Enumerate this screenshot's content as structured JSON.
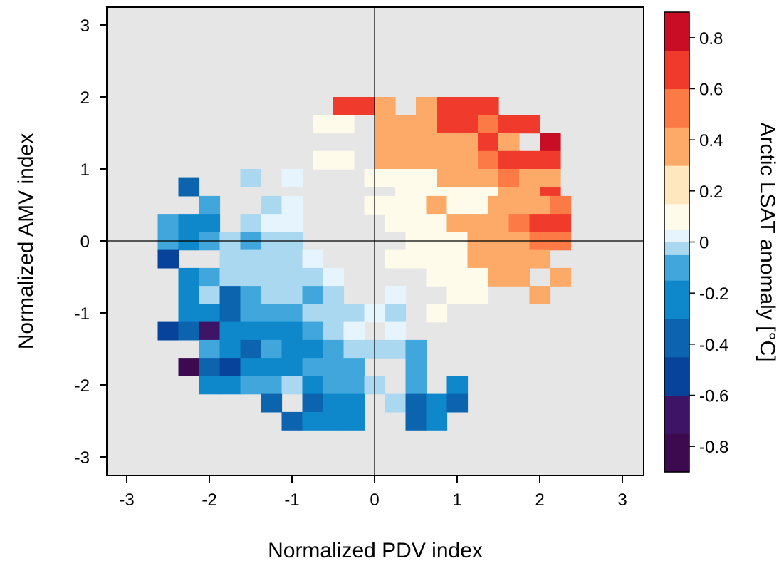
{
  "chart_data": {
    "type": "heatmap",
    "title": "",
    "xlabel": "Normalized PDV index",
    "ylabel": "Normalized AMV index",
    "colorbar_label": "Arctic LSAT anomaly [°C]",
    "xlim": [
      -3.0,
      3.0
    ],
    "ylim": [
      -3.0,
      3.0
    ],
    "x_ticks": [
      -3,
      -2,
      -1,
      0,
      1,
      2,
      3
    ],
    "y_ticks": [
      -3,
      -2,
      -1,
      0,
      1,
      2,
      3
    ],
    "x_tick_labels": [
      "-3",
      "-2",
      "-1",
      "0",
      "1",
      "2",
      "3"
    ],
    "y_tick_labels": [
      "-3",
      "-2",
      "-1",
      "0",
      "1",
      "2",
      "3"
    ],
    "reference_lines": {
      "x": 0,
      "y": 0
    },
    "cell_size": 0.25,
    "background_color": "#e6e6e6",
    "colorbar": {
      "range": [
        -0.9,
        0.9
      ],
      "bins": [
        {
          "min": -0.9,
          "max": -0.75,
          "color": "#3d0a4f"
        },
        {
          "min": -0.75,
          "max": -0.6,
          "color": "#3e1466"
        },
        {
          "min": -0.6,
          "max": -0.45,
          "color": "#08439b"
        },
        {
          "min": -0.45,
          "max": -0.3,
          "color": "#0c64af"
        },
        {
          "min": -0.3,
          "max": -0.15,
          "color": "#0e88cb"
        },
        {
          "min": -0.15,
          "max": -0.05,
          "color": "#40a6db"
        },
        {
          "min": -0.05,
          "max": 0.0,
          "color": "#aad8f0"
        },
        {
          "min": 0.0,
          "max": 0.05,
          "color": "#e6f5fd"
        },
        {
          "min": 0.05,
          "max": 0.15,
          "color": "#fffbea"
        },
        {
          "min": 0.15,
          "max": 0.3,
          "color": "#ffe7bd"
        },
        {
          "min": 0.3,
          "max": 0.45,
          "color": "#fda968"
        },
        {
          "min": 0.45,
          "max": 0.6,
          "color": "#fc7a45"
        },
        {
          "min": 0.6,
          "max": 0.75,
          "color": "#f03a2c"
        },
        {
          "min": 0.75,
          "max": 0.9,
          "color": "#c80d25"
        }
      ],
      "ticks": [
        0.8,
        0.6,
        0.4,
        0.2,
        0,
        -0.2,
        -0.4,
        -0.6,
        -0.8
      ],
      "tick_labels": [
        "0.8",
        "0.6",
        "0.4",
        "0.2",
        "0",
        "-0.2",
        "-0.4",
        "-0.6",
        "-0.8"
      ]
    },
    "cells": [
      {
        "x": -0.375,
        "y": 1.875,
        "v": 0.62
      },
      {
        "x": -0.125,
        "y": 1.875,
        "v": 0.62
      },
      {
        "x": 0.125,
        "y": 1.875,
        "v": 0.42
      },
      {
        "x": 0.625,
        "y": 1.875,
        "v": 0.32
      },
      {
        "x": 0.875,
        "y": 1.875,
        "v": 0.62
      },
      {
        "x": 1.125,
        "y": 1.875,
        "v": 0.62
      },
      {
        "x": 1.375,
        "y": 1.875,
        "v": 0.62
      },
      {
        "x": -0.625,
        "y": 1.625,
        "v": 0.12
      },
      {
        "x": -0.375,
        "y": 1.625,
        "v": 0.12
      },
      {
        "x": 0.125,
        "y": 1.625,
        "v": 0.32
      },
      {
        "x": 0.375,
        "y": 1.625,
        "v": 0.42
      },
      {
        "x": 0.625,
        "y": 1.625,
        "v": 0.42
      },
      {
        "x": 0.875,
        "y": 1.625,
        "v": 0.62
      },
      {
        "x": 1.125,
        "y": 1.625,
        "v": 0.62
      },
      {
        "x": 1.375,
        "y": 1.625,
        "v": 0.52
      },
      {
        "x": 1.625,
        "y": 1.625,
        "v": 0.62
      },
      {
        "x": 1.875,
        "y": 1.625,
        "v": 0.62
      },
      {
        "x": 0.125,
        "y": 1.375,
        "v": 0.32
      },
      {
        "x": 0.375,
        "y": 1.375,
        "v": 0.42
      },
      {
        "x": 0.625,
        "y": 1.375,
        "v": 0.32
      },
      {
        "x": 0.875,
        "y": 1.375,
        "v": 0.32
      },
      {
        "x": 1.125,
        "y": 1.375,
        "v": 0.32
      },
      {
        "x": 1.375,
        "y": 1.375,
        "v": 0.62
      },
      {
        "x": 1.625,
        "y": 1.375,
        "v": 0.32
      },
      {
        "x": 2.125,
        "y": 1.375,
        "v": 0.82
      },
      {
        "x": -0.625,
        "y": 1.125,
        "v": 0.12
      },
      {
        "x": -0.375,
        "y": 1.125,
        "v": 0.12
      },
      {
        "x": 0.125,
        "y": 1.125,
        "v": 0.32
      },
      {
        "x": 0.375,
        "y": 1.125,
        "v": 0.32
      },
      {
        "x": 0.625,
        "y": 1.125,
        "v": 0.32
      },
      {
        "x": 0.875,
        "y": 1.125,
        "v": 0.32
      },
      {
        "x": 1.125,
        "y": 1.125,
        "v": 0.32
      },
      {
        "x": 1.375,
        "y": 1.125,
        "v": 0.52
      },
      {
        "x": 1.625,
        "y": 1.125,
        "v": 0.62
      },
      {
        "x": 1.875,
        "y": 1.125,
        "v": 0.62
      },
      {
        "x": 2.125,
        "y": 1.125,
        "v": 0.62
      },
      {
        "x": -1.5,
        "y": 0.875,
        "v": -0.02
      },
      {
        "x": -1.0,
        "y": 0.875,
        "v": 0.02
      },
      {
        "x": 0.0,
        "y": 0.875,
        "v": 0.08
      },
      {
        "x": 0.25,
        "y": 0.875,
        "v": 0.12
      },
      {
        "x": 0.375,
        "y": 0.875,
        "v": 0.12
      },
      {
        "x": 0.625,
        "y": 0.875,
        "v": 0.12
      },
      {
        "x": 0.875,
        "y": 0.875,
        "v": 0.42
      },
      {
        "x": 1.125,
        "y": 0.875,
        "v": 0.42
      },
      {
        "x": 1.375,
        "y": 0.875,
        "v": 0.42
      },
      {
        "x": 1.625,
        "y": 0.875,
        "v": 0.52
      },
      {
        "x": 1.875,
        "y": 0.875,
        "v": 0.42
      },
      {
        "x": 2.125,
        "y": 0.875,
        "v": 0.42
      },
      {
        "x": -2.25,
        "y": 0.75,
        "v": -0.38
      },
      {
        "x": 0.375,
        "y": 0.625,
        "v": 0.12
      },
      {
        "x": 0.625,
        "y": 0.625,
        "v": 0.12
      },
      {
        "x": 0.875,
        "y": 0.625,
        "v": 0.12
      },
      {
        "x": 1.125,
        "y": 0.625,
        "v": 0.12
      },
      {
        "x": 1.375,
        "y": 0.625,
        "v": 0.12
      },
      {
        "x": 1.625,
        "y": 0.625,
        "v": 0.42
      },
      {
        "x": 1.875,
        "y": 0.625,
        "v": 0.42
      },
      {
        "x": 2.125,
        "y": 0.625,
        "v": 0.62
      },
      {
        "x": -2.0,
        "y": 0.5,
        "v": -0.12
      },
      {
        "x": -1.25,
        "y": 0.5,
        "v": -0.02
      },
      {
        "x": -1.0,
        "y": 0.5,
        "v": 0.02
      },
      {
        "x": 0.0,
        "y": 0.5,
        "v": 0.12
      },
      {
        "x": 0.25,
        "y": 0.5,
        "v": 0.12
      },
      {
        "x": 0.5,
        "y": 0.5,
        "v": 0.12
      },
      {
        "x": 0.75,
        "y": 0.5,
        "v": 0.32
      },
      {
        "x": 1.0,
        "y": 0.5,
        "v": 0.12
      },
      {
        "x": 1.25,
        "y": 0.5,
        "v": 0.12
      },
      {
        "x": 1.5,
        "y": 0.5,
        "v": 0.42
      },
      {
        "x": 1.75,
        "y": 0.5,
        "v": 0.42
      },
      {
        "x": 2.0,
        "y": 0.5,
        "v": 0.42
      },
      {
        "x": 2.25,
        "y": 0.5,
        "v": 0.52
      },
      {
        "x": -2.5,
        "y": 0.25,
        "v": -0.12
      },
      {
        "x": -2.25,
        "y": 0.25,
        "v": -0.22
      },
      {
        "x": -2.0,
        "y": 0.25,
        "v": -0.22
      },
      {
        "x": -1.5,
        "y": 0.25,
        "v": -0.02
      },
      {
        "x": -1.25,
        "y": 0.25,
        "v": 0.02
      },
      {
        "x": -1.0,
        "y": 0.25,
        "v": 0.02
      },
      {
        "x": 0.25,
        "y": 0.25,
        "v": 0.08
      },
      {
        "x": 0.5,
        "y": 0.25,
        "v": 0.12
      },
      {
        "x": 0.75,
        "y": 0.25,
        "v": 0.12
      },
      {
        "x": 1.0,
        "y": 0.25,
        "v": 0.32
      },
      {
        "x": 1.25,
        "y": 0.25,
        "v": 0.32
      },
      {
        "x": 1.5,
        "y": 0.25,
        "v": 0.32
      },
      {
        "x": 1.75,
        "y": 0.25,
        "v": 0.52
      },
      {
        "x": 2.0,
        "y": 0.25,
        "v": 0.62
      },
      {
        "x": 2.25,
        "y": 0.25,
        "v": 0.62
      },
      {
        "x": -2.5,
        "y": 0.0,
        "v": -0.12
      },
      {
        "x": -2.25,
        "y": 0.0,
        "v": -0.22
      },
      {
        "x": -2.0,
        "y": 0.0,
        "v": -0.12
      },
      {
        "x": -1.75,
        "y": 0.0,
        "v": -0.02
      },
      {
        "x": -1.5,
        "y": 0.0,
        "v": -0.12
      },
      {
        "x": -1.25,
        "y": 0.0,
        "v": -0.02
      },
      {
        "x": -1.0,
        "y": 0.0,
        "v": -0.02
      },
      {
        "x": 0.5,
        "y": 0.0,
        "v": 0.12
      },
      {
        "x": 0.75,
        "y": 0.0,
        "v": 0.12
      },
      {
        "x": 1.0,
        "y": 0.0,
        "v": 0.12
      },
      {
        "x": 1.25,
        "y": 0.0,
        "v": 0.32
      },
      {
        "x": 1.5,
        "y": 0.0,
        "v": 0.42
      },
      {
        "x": 1.75,
        "y": 0.0,
        "v": 0.42
      },
      {
        "x": 2.0,
        "y": 0.0,
        "v": 0.52
      },
      {
        "x": 2.25,
        "y": 0.0,
        "v": 0.52
      },
      {
        "x": -2.5,
        "y": -0.25,
        "v": -0.48
      },
      {
        "x": -1.75,
        "y": -0.25,
        "v": -0.02
      },
      {
        "x": -1.5,
        "y": -0.25,
        "v": -0.02
      },
      {
        "x": -1.25,
        "y": -0.25,
        "v": -0.02
      },
      {
        "x": -1.0,
        "y": -0.25,
        "v": -0.02
      },
      {
        "x": -0.75,
        "y": -0.25,
        "v": 0.02
      },
      {
        "x": 0.25,
        "y": -0.25,
        "v": 0.08
      },
      {
        "x": 0.5,
        "y": -0.25,
        "v": 0.12
      },
      {
        "x": 0.75,
        "y": -0.25,
        "v": 0.12
      },
      {
        "x": 1.0,
        "y": -0.25,
        "v": 0.12
      },
      {
        "x": 1.25,
        "y": -0.25,
        "v": 0.32
      },
      {
        "x": 1.5,
        "y": -0.25,
        "v": 0.42
      },
      {
        "x": 1.75,
        "y": -0.25,
        "v": 0.42
      },
      {
        "x": 2.0,
        "y": -0.25,
        "v": 0.42
      },
      {
        "x": -2.25,
        "y": -0.5,
        "v": -0.22
      },
      {
        "x": -2.0,
        "y": -0.5,
        "v": -0.12
      },
      {
        "x": -1.75,
        "y": -0.5,
        "v": -0.02
      },
      {
        "x": -1.5,
        "y": -0.5,
        "v": -0.02
      },
      {
        "x": -1.25,
        "y": -0.5,
        "v": -0.02
      },
      {
        "x": -1.0,
        "y": -0.5,
        "v": -0.02
      },
      {
        "x": -0.75,
        "y": -0.5,
        "v": -0.02
      },
      {
        "x": -0.5,
        "y": -0.5,
        "v": 0.02
      },
      {
        "x": 0.75,
        "y": -0.5,
        "v": 0.12
      },
      {
        "x": 1.0,
        "y": -0.5,
        "v": 0.12
      },
      {
        "x": 1.25,
        "y": -0.5,
        "v": 0.12
      },
      {
        "x": 1.5,
        "y": -0.5,
        "v": 0.42
      },
      {
        "x": 1.75,
        "y": -0.5,
        "v": 0.42
      },
      {
        "x": 2.25,
        "y": -0.5,
        "v": 0.42
      },
      {
        "x": -2.25,
        "y": -0.75,
        "v": -0.22
      },
      {
        "x": -2.0,
        "y": -0.75,
        "v": -0.02
      },
      {
        "x": -1.75,
        "y": -0.75,
        "v": -0.38
      },
      {
        "x": -1.5,
        "y": -0.75,
        "v": -0.12
      },
      {
        "x": -1.25,
        "y": -0.75,
        "v": -0.02
      },
      {
        "x": -1.0,
        "y": -0.75,
        "v": -0.02
      },
      {
        "x": -0.75,
        "y": -0.75,
        "v": -0.12
      },
      {
        "x": -0.5,
        "y": -0.75,
        "v": -0.02
      },
      {
        "x": 0.25,
        "y": -0.75,
        "v": 0.02
      },
      {
        "x": 1.0,
        "y": -0.75,
        "v": 0.08
      },
      {
        "x": 1.25,
        "y": -0.75,
        "v": 0.12
      },
      {
        "x": 2.0,
        "y": -0.75,
        "v": 0.42
      },
      {
        "x": -2.25,
        "y": -1.0,
        "v": -0.22
      },
      {
        "x": -2.0,
        "y": -1.0,
        "v": -0.22
      },
      {
        "x": -1.75,
        "y": -1.0,
        "v": -0.38
      },
      {
        "x": -1.5,
        "y": -1.0,
        "v": -0.12
      },
      {
        "x": -1.25,
        "y": -1.0,
        "v": -0.12
      },
      {
        "x": -1.0,
        "y": -1.0,
        "v": -0.12
      },
      {
        "x": -0.75,
        "y": -1.0,
        "v": -0.02
      },
      {
        "x": -0.5,
        "y": -1.0,
        "v": -0.02
      },
      {
        "x": -0.25,
        "y": -1.0,
        "v": -0.02
      },
      {
        "x": 0.0,
        "y": -1.0,
        "v": 0.02
      },
      {
        "x": 0.25,
        "y": -1.0,
        "v": -0.02
      },
      {
        "x": 0.75,
        "y": -1.0,
        "v": 0.12
      },
      {
        "x": -2.5,
        "y": -1.25,
        "v": -0.48
      },
      {
        "x": -2.25,
        "y": -1.25,
        "v": -0.38
      },
      {
        "x": -2.0,
        "y": -1.25,
        "v": -0.68
      },
      {
        "x": -1.75,
        "y": -1.25,
        "v": -0.22
      },
      {
        "x": -1.5,
        "y": -1.25,
        "v": -0.22
      },
      {
        "x": -1.25,
        "y": -1.25,
        "v": -0.22
      },
      {
        "x": -1.0,
        "y": -1.25,
        "v": -0.22
      },
      {
        "x": -0.75,
        "y": -1.25,
        "v": -0.12
      },
      {
        "x": -0.5,
        "y": -1.25,
        "v": -0.02
      },
      {
        "x": -0.25,
        "y": -1.25,
        "v": 0.02
      },
      {
        "x": 0.25,
        "y": -1.25,
        "v": 0.02
      },
      {
        "x": -2.0,
        "y": -1.5,
        "v": -0.12
      },
      {
        "x": -1.75,
        "y": -1.5,
        "v": -0.22
      },
      {
        "x": -1.5,
        "y": -1.5,
        "v": -0.38
      },
      {
        "x": -1.25,
        "y": -1.5,
        "v": -0.12
      },
      {
        "x": -1.0,
        "y": -1.5,
        "v": -0.22
      },
      {
        "x": -0.75,
        "y": -1.5,
        "v": -0.22
      },
      {
        "x": -0.5,
        "y": -1.5,
        "v": -0.12
      },
      {
        "x": -0.25,
        "y": -1.5,
        "v": -0.02
      },
      {
        "x": 0.0,
        "y": -1.5,
        "v": -0.02
      },
      {
        "x": 0.25,
        "y": -1.5,
        "v": -0.02
      },
      {
        "x": 0.5,
        "y": -1.5,
        "v": -0.12
      },
      {
        "x": -2.25,
        "y": -1.75,
        "v": -0.78
      },
      {
        "x": -2.0,
        "y": -1.75,
        "v": -0.38
      },
      {
        "x": -1.75,
        "y": -1.75,
        "v": -0.48
      },
      {
        "x": -1.5,
        "y": -1.75,
        "v": -0.22
      },
      {
        "x": -1.25,
        "y": -1.75,
        "v": -0.22
      },
      {
        "x": -1.0,
        "y": -1.75,
        "v": -0.22
      },
      {
        "x": -0.75,
        "y": -1.75,
        "v": -0.12
      },
      {
        "x": -0.5,
        "y": -1.75,
        "v": -0.12
      },
      {
        "x": -0.25,
        "y": -1.75,
        "v": -0.12
      },
      {
        "x": 0.5,
        "y": -1.75,
        "v": -0.12
      },
      {
        "x": -2.0,
        "y": -2.0,
        "v": -0.22
      },
      {
        "x": -1.75,
        "y": -2.0,
        "v": -0.22
      },
      {
        "x": -1.5,
        "y": -2.0,
        "v": -0.12
      },
      {
        "x": -1.25,
        "y": -2.0,
        "v": -0.12
      },
      {
        "x": -1.0,
        "y": -2.0,
        "v": -0.02
      },
      {
        "x": -0.75,
        "y": -2.0,
        "v": -0.22
      },
      {
        "x": -0.5,
        "y": -2.0,
        "v": -0.12
      },
      {
        "x": -0.25,
        "y": -2.0,
        "v": -0.12
      },
      {
        "x": 0.0,
        "y": -2.0,
        "v": -0.02
      },
      {
        "x": 0.5,
        "y": -2.0,
        "v": -0.12
      },
      {
        "x": 1.0,
        "y": -2.0,
        "v": -0.22
      },
      {
        "x": -1.25,
        "y": -2.25,
        "v": -0.38
      },
      {
        "x": -0.75,
        "y": -2.25,
        "v": -0.38
      },
      {
        "x": -0.5,
        "y": -2.25,
        "v": -0.22
      },
      {
        "x": -0.25,
        "y": -2.25,
        "v": -0.22
      },
      {
        "x": 0.25,
        "y": -2.25,
        "v": -0.02
      },
      {
        "x": 0.5,
        "y": -2.25,
        "v": -0.38
      },
      {
        "x": 0.75,
        "y": -2.25,
        "v": -0.22
      },
      {
        "x": 1.0,
        "y": -2.25,
        "v": -0.38
      },
      {
        "x": -1.0,
        "y": -2.5,
        "v": -0.38
      },
      {
        "x": -0.75,
        "y": -2.5,
        "v": -0.22
      },
      {
        "x": -0.5,
        "y": -2.5,
        "v": -0.22
      },
      {
        "x": -0.25,
        "y": -2.5,
        "v": -0.22
      },
      {
        "x": 0.5,
        "y": -2.5,
        "v": -0.38
      },
      {
        "x": 0.75,
        "y": -2.5,
        "v": -0.22
      }
    ]
  }
}
